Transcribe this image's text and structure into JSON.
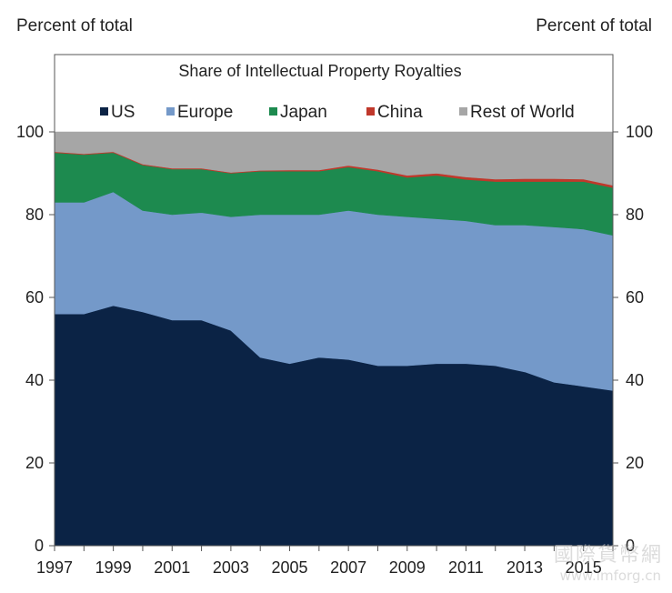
{
  "left_unit": "Percent of total",
  "right_unit": "Percent of total",
  "watermark": "國際貨幣網",
  "watermark_url": "www.imforg.cn",
  "chart_data": {
    "type": "area",
    "stacked": true,
    "title": "Share of Intellectual Property Royalties",
    "x": [
      1997,
      1998,
      1999,
      2000,
      2001,
      2002,
      2003,
      2004,
      2005,
      2006,
      2007,
      2008,
      2009,
      2010,
      2011,
      2012,
      2013,
      2014,
      2015,
      2016
    ],
    "x_ticks": [
      "1997",
      "1999",
      "2001",
      "2003",
      "2005",
      "2007",
      "2009",
      "2011",
      "2013",
      "2015"
    ],
    "ylim": [
      0,
      100
    ],
    "y_ticks": [
      "0",
      "20",
      "40",
      "60",
      "80",
      "100"
    ],
    "legend_position": "top",
    "grid": false,
    "series": [
      {
        "name": "US",
        "color": "#0b2345",
        "values": [
          56,
          56,
          58,
          56.5,
          54.5,
          54.5,
          52,
          45.5,
          44,
          45.5,
          45,
          43.5,
          43.5,
          44,
          44,
          43.5,
          42,
          39.5,
          38.5,
          37.5
        ]
      },
      {
        "name": "Europe",
        "color": "#7499c9",
        "values": [
          27,
          27,
          27.5,
          24.5,
          25.5,
          26,
          27.5,
          34.5,
          36,
          34.5,
          36,
          36.5,
          36,
          35,
          34.5,
          34,
          35.5,
          37.5,
          38,
          37.5
        ]
      },
      {
        "name": "Japan",
        "color": "#1d8a4f",
        "values": [
          12,
          11.5,
          9.5,
          11,
          11,
          10.5,
          10.5,
          10.5,
          10.5,
          10.5,
          10.5,
          10.5,
          9.5,
          10.5,
          10,
          10.5,
          10.5,
          11,
          11.5,
          11.5
        ]
      },
      {
        "name": "China",
        "color": "#c0382b",
        "values": [
          0.2,
          0.2,
          0.2,
          0.2,
          0.2,
          0.2,
          0.2,
          0.2,
          0.3,
          0.3,
          0.4,
          0.4,
          0.5,
          0.5,
          0.6,
          0.6,
          0.7,
          0.7,
          0.6,
          0.6
        ]
      },
      {
        "name": "Rest of World",
        "color": "#a6a6a6",
        "values": [
          4.8,
          5.3,
          4.8,
          7.8,
          8.8,
          8.8,
          9.8,
          9.3,
          9.2,
          9.2,
          8.1,
          9.1,
          10.5,
          10,
          10.9,
          11.4,
          11.3,
          11.3,
          11.4,
          12.9
        ]
      }
    ]
  }
}
